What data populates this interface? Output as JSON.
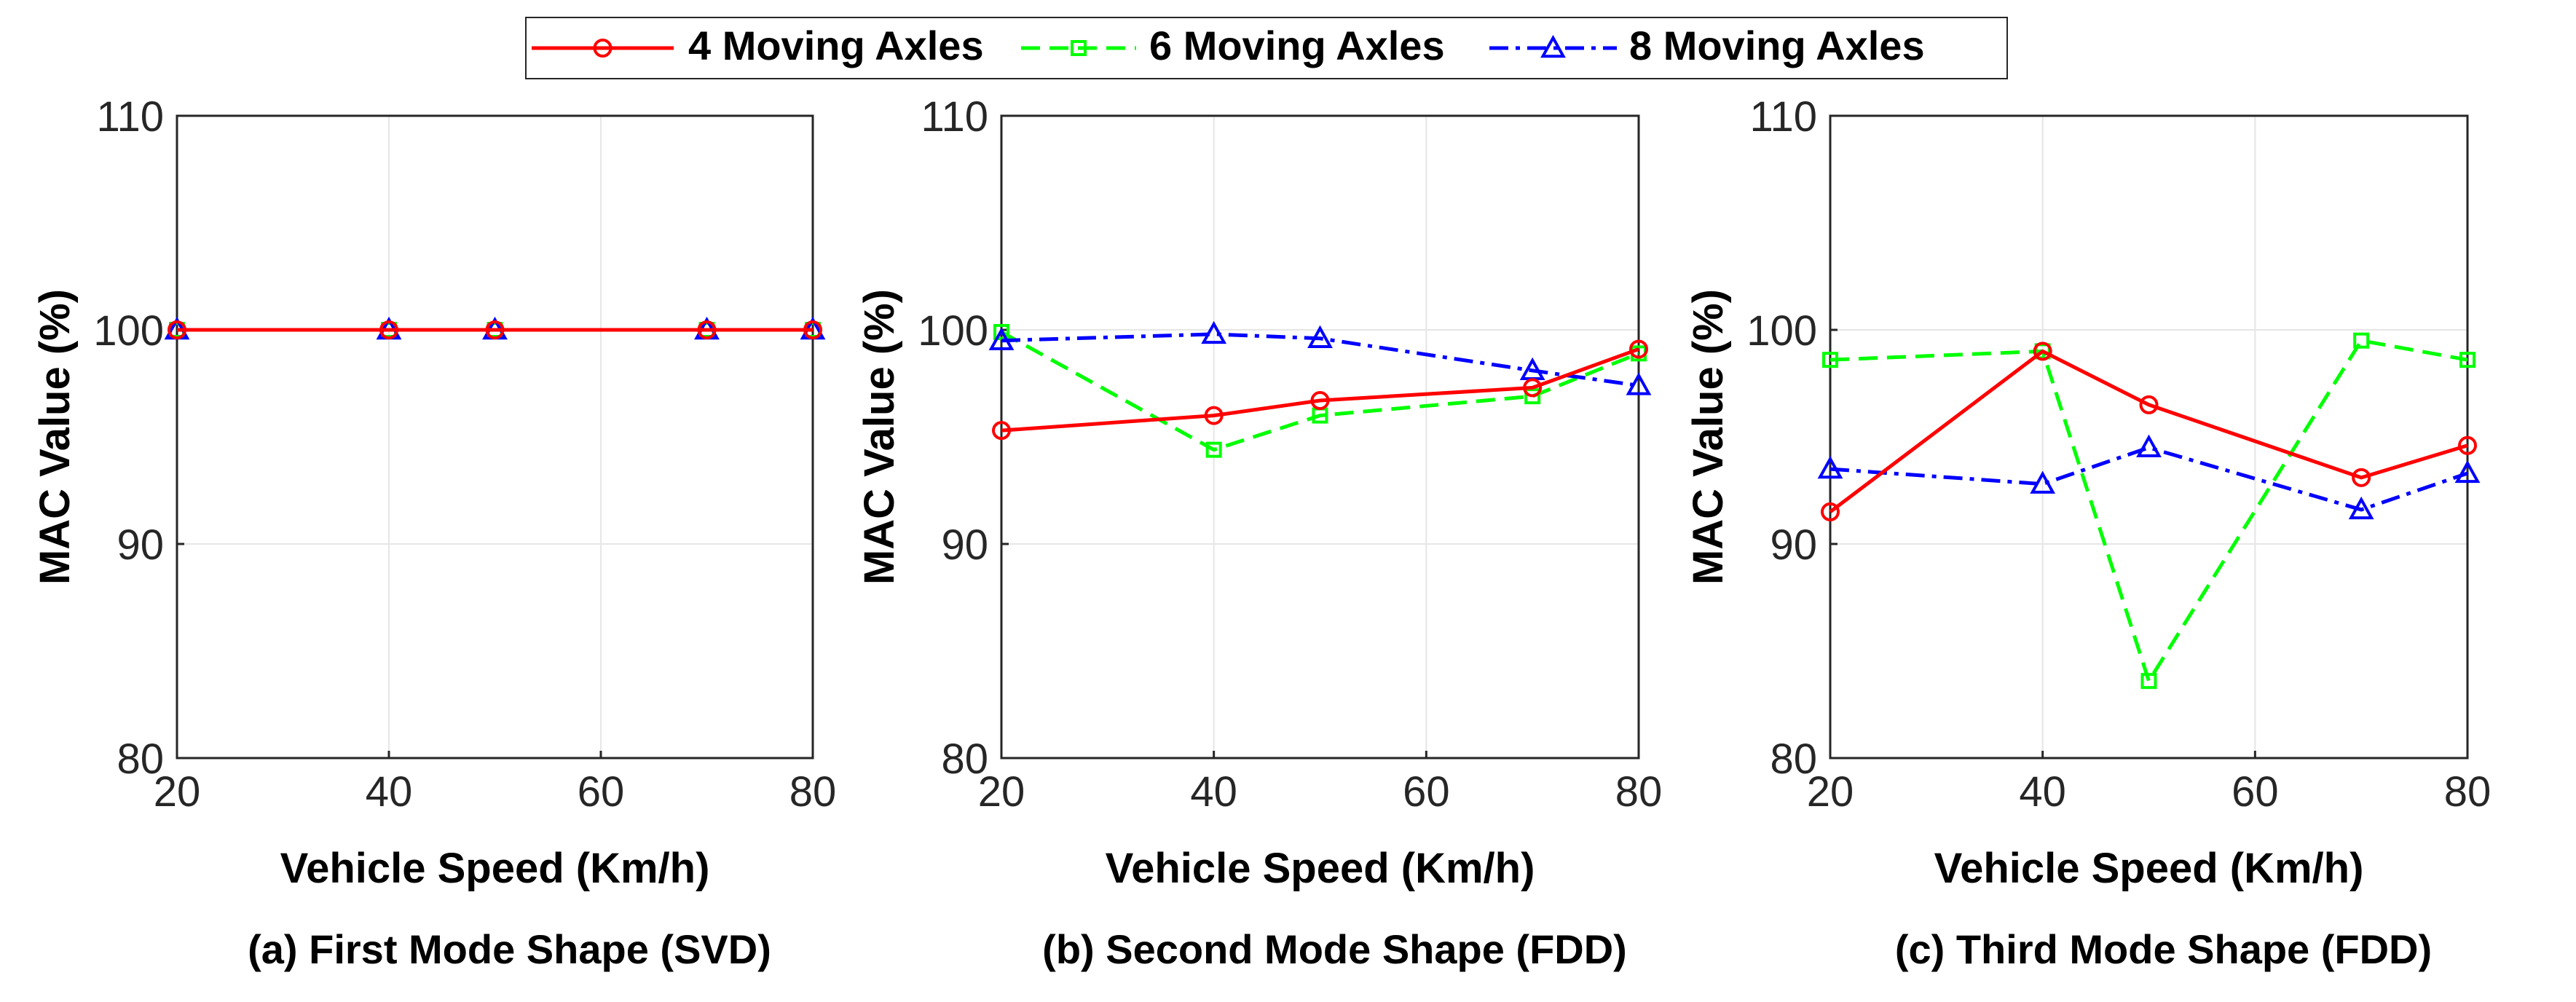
{
  "legend": {
    "entries": [
      {
        "label": "4 Moving Axles",
        "color": "#ff0000",
        "marker": "circle",
        "dash": "solid"
      },
      {
        "label": "6 Moving Axles",
        "color": "#00ff00",
        "marker": "square",
        "dash": "dashed"
      },
      {
        "label": "8 Moving Axles",
        "color": "#0000ff",
        "marker": "triangle",
        "dash": "dashdot"
      }
    ]
  },
  "chart_data": [
    {
      "type": "line",
      "caption": "(a) First Mode Shape (SVD)",
      "xlabel": "Vehicle Speed (Km/h)",
      "ylabel": "MAC Value (%)",
      "xlim": [
        20,
        80
      ],
      "ylim": [
        80,
        110
      ],
      "xticks": [
        "20",
        "40",
        "60",
        "80"
      ],
      "yticks": [
        "80",
        "90",
        "100",
        "110"
      ],
      "grid": true,
      "x": [
        20,
        40,
        50,
        70,
        80
      ],
      "series": [
        {
          "name": "4 Moving Axles",
          "values": [
            100,
            100,
            100,
            100,
            100
          ]
        },
        {
          "name": "6 Moving Axles",
          "values": [
            100,
            100,
            100,
            100,
            100
          ]
        },
        {
          "name": "8 Moving Axles",
          "values": [
            100,
            100,
            100,
            100,
            100
          ]
        }
      ]
    },
    {
      "type": "line",
      "caption": "(b) Second Mode Shape (FDD)",
      "xlabel": "Vehicle Speed (Km/h)",
      "ylabel": "MAC Value (%)",
      "xlim": [
        20,
        80
      ],
      "ylim": [
        80,
        110
      ],
      "xticks": [
        "20",
        "40",
        "60",
        "80"
      ],
      "yticks": [
        "80",
        "90",
        "100",
        "110"
      ],
      "grid": true,
      "x": [
        20,
        40,
        50,
        70,
        80
      ],
      "series": [
        {
          "name": "4 Moving Axles",
          "values": [
            95.3,
            96.0,
            96.7,
            97.3,
            99.1
          ]
        },
        {
          "name": "6 Moving Axles",
          "values": [
            99.9,
            94.4,
            96.0,
            96.9,
            98.9
          ]
        },
        {
          "name": "8 Moving Axles",
          "values": [
            99.5,
            99.8,
            99.6,
            98.1,
            97.4
          ]
        }
      ]
    },
    {
      "type": "line",
      "caption": "(c) Third Mode Shape (FDD)",
      "xlabel": "Vehicle Speed (Km/h)",
      "ylabel": "MAC Value (%)",
      "xlim": [
        20,
        80
      ],
      "ylim": [
        80,
        110
      ],
      "xticks": [
        "20",
        "40",
        "60",
        "80"
      ],
      "yticks": [
        "80",
        "90",
        "100",
        "110"
      ],
      "grid": true,
      "x": [
        20,
        40,
        50,
        70,
        80
      ],
      "series": [
        {
          "name": "4 Moving Axles",
          "values": [
            91.5,
            99.0,
            96.5,
            93.1,
            94.6
          ]
        },
        {
          "name": "6 Moving Axles",
          "values": [
            98.6,
            99.0,
            83.6,
            99.5,
            98.6
          ]
        },
        {
          "name": "8 Moving Axles",
          "values": [
            93.5,
            92.8,
            94.5,
            91.6,
            93.3
          ]
        }
      ]
    }
  ]
}
